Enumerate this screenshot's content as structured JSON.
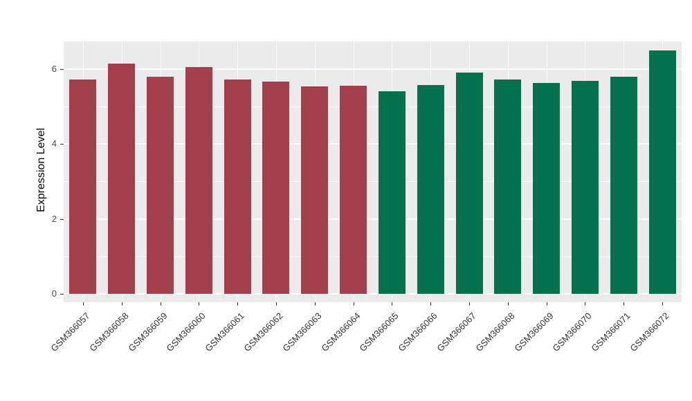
{
  "chart_data": {
    "type": "bar",
    "title": "",
    "xlabel": "",
    "ylabel": "Expression Level",
    "ylim": [
      0,
      6.9
    ],
    "yticks": [
      0,
      2,
      4,
      6
    ],
    "yticks_minor": [
      1,
      3,
      5
    ],
    "grid": true,
    "legend_position": "none",
    "categories": [
      "GSM366057",
      "GSM366058",
      "GSM366059",
      "GSM366060",
      "GSM366061",
      "GSM366062",
      "GSM366063",
      "GSM366064",
      "GSM366065",
      "GSM366066",
      "GSM366067",
      "GSM366068",
      "GSM366069",
      "GSM366070",
      "GSM366071",
      "GSM366072"
    ],
    "values": [
      5.72,
      6.15,
      5.8,
      6.05,
      5.72,
      5.67,
      5.54,
      5.56,
      5.4,
      5.58,
      5.9,
      5.72,
      5.63,
      5.68,
      5.8,
      6.5
    ],
    "bar_groups": [
      1,
      1,
      1,
      1,
      1,
      1,
      1,
      1,
      2,
      2,
      2,
      2,
      2,
      2,
      2,
      2
    ]
  },
  "style": {
    "group_colors": {
      "1": "#A13F4B",
      "2": "#03714E"
    },
    "panel_background": "#EBEBEB",
    "grid_color": "#FFFFFF",
    "tick_label_color": "#4D4D4D",
    "axis_title_color": "#000000"
  },
  "layout_labels": {
    "y_axis_title": "Expression Level"
  }
}
